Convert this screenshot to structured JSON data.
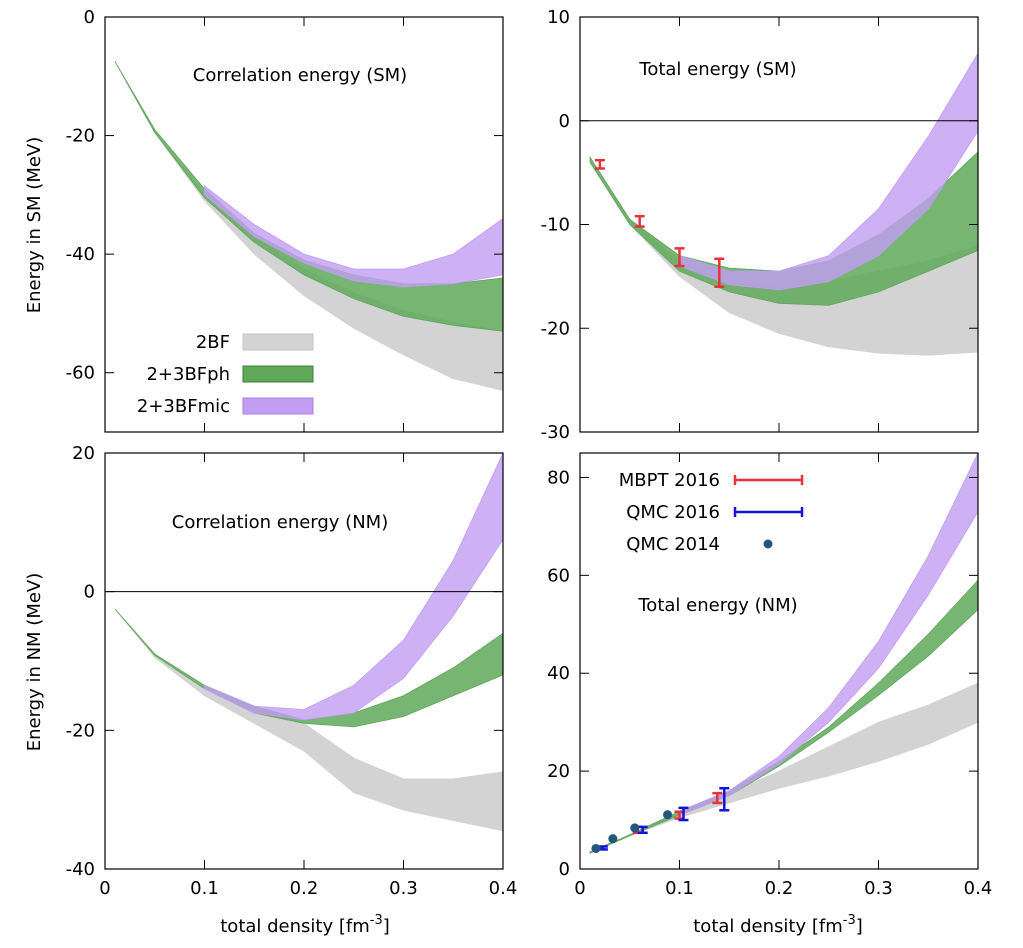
{
  "ylabel_sm": "Energy in SM (MeV)",
  "ylabel_nm": "Energy in NM (MeV)",
  "xlabel_base": "total density [fm",
  "xlabel_exp": "-3",
  "xlabel_end": "]",
  "colors": {
    "2BF": "#d3d3d3",
    "2+3BFph": "#5fa85a",
    "2+3BFmic": "#c29df2",
    "mbpt": "#e8323a",
    "qmc2016": "#1414d8",
    "qmc2014": "#23577e"
  },
  "chart_data": [
    {
      "id": "sm-corr",
      "type": "area",
      "title": "Correlation energy (SM)",
      "xlim": [
        0,
        0.4
      ],
      "ylim": [
        -70,
        0
      ],
      "xticks": [
        0,
        0.1,
        0.2,
        0.3,
        0.4
      ],
      "xtick_labels": [
        "0",
        "0.1",
        "0.2",
        "0.3",
        "0.4"
      ],
      "yticks": [
        -60,
        -40,
        -20,
        0
      ],
      "ytick_labels": [
        "-60",
        "-40",
        "-20",
        "0"
      ],
      "zero_line": false,
      "legend": [
        {
          "name": "2BF",
          "color": "#d3d3d3"
        },
        {
          "name": "2+3BFph",
          "color": "#5fa85a"
        },
        {
          "name": "2+3BFmic",
          "color": "#c29df2"
        }
      ],
      "bands": [
        {
          "name": "2BF",
          "x": [
            0.01,
            0.05,
            0.1,
            0.15,
            0.2,
            0.25,
            0.3,
            0.35,
            0.4
          ],
          "upper": [
            -7.5,
            -19.5,
            -30,
            -37,
            -42.5,
            -46.5,
            -49.5,
            -51.5,
            -53
          ],
          "lower": [
            -7.5,
            -19.5,
            -31,
            -40,
            -47,
            -52.5,
            -57,
            -61,
            -63
          ]
        },
        {
          "name": "2+3BFph",
          "x": [
            0.01,
            0.05,
            0.1,
            0.15,
            0.2,
            0.25,
            0.3,
            0.35,
            0.4
          ],
          "upper": [
            -7.5,
            -19,
            -29,
            -36.5,
            -41,
            -43.5,
            -45,
            -45,
            -44
          ]
        },
        {
          "name": "2+3BFph_lo",
          "x": [
            0.01,
            0.05,
            0.1,
            0.15,
            0.2,
            0.25,
            0.3,
            0.35,
            0.4
          ],
          "lower": [
            -7.5,
            -19.5,
            -30.5,
            -38,
            -43.5,
            -47.5,
            -50.5,
            -52,
            -53
          ]
        },
        {
          "name": "2+3BFmic",
          "x": [
            0.1,
            0.15,
            0.2,
            0.25,
            0.3,
            0.35,
            0.4
          ],
          "upper": [
            -28.5,
            -35,
            -40,
            -42.5,
            -42.5,
            -40,
            -34
          ],
          "lower": [
            -30,
            -37,
            -41.5,
            -44.5,
            -45.5,
            -45,
            -43.5
          ]
        }
      ]
    },
    {
      "id": "sm-total",
      "type": "area",
      "title": "Total energy (SM)",
      "xlim": [
        0,
        0.4
      ],
      "ylim": [
        -30,
        10
      ],
      "xticks": [
        0,
        0.1,
        0.2,
        0.3,
        0.4
      ],
      "xtick_labels": [
        "0",
        "0.1",
        "0.2",
        "0.3",
        "0.4"
      ],
      "yticks": [
        -30,
        -20,
        -10,
        0,
        10
      ],
      "ytick_labels": [
        "-30",
        "-20",
        "-10",
        "0",
        "10"
      ],
      "zero_line": true,
      "bands": [
        {
          "name": "2BF",
          "x": [
            0.01,
            0.05,
            0.1,
            0.15,
            0.2,
            0.25,
            0.3,
            0.35,
            0.4
          ],
          "upper": [
            -4,
            -9.5,
            -13.5,
            -15.5,
            -16,
            -15.5,
            -14.5,
            -13.5,
            -12
          ],
          "lower": [
            -4,
            -10,
            -15,
            -18.5,
            -20.5,
            -21.8,
            -22.4,
            -22.6,
            -22.3
          ]
        },
        {
          "name": "2+3BFph",
          "x": [
            0.01,
            0.05,
            0.1,
            0.15,
            0.2,
            0.25,
            0.3,
            0.35,
            0.4
          ],
          "upper": [
            -3.5,
            -9.5,
            -13,
            -14.2,
            -14.5,
            -13.5,
            -11,
            -7.5,
            -3
          ],
          "lower": [
            -4,
            -10,
            -14.5,
            -16.5,
            -17.6,
            -17.8,
            -16.5,
            -14.5,
            -12.5
          ]
        },
        {
          "name": "2+3BFmic",
          "x": [
            0.1,
            0.15,
            0.2,
            0.25,
            0.3,
            0.35,
            0.4
          ],
          "upper": [
            -13,
            -14.5,
            -14.5,
            -13,
            -8.5,
            -1.5,
            6.5
          ],
          "lower": [
            -14,
            -15.8,
            -16.3,
            -15.5,
            -13,
            -8.5,
            -1
          ]
        }
      ],
      "errorbars_mbpt": [
        {
          "x": 0.02,
          "y": -4.2,
          "lo": -4.6,
          "hi": -3.8
        },
        {
          "x": 0.06,
          "y": -9.6,
          "lo": -10.2,
          "hi": -9.2
        },
        {
          "x": 0.1,
          "y": -13.2,
          "lo": -14.0,
          "hi": -12.3
        },
        {
          "x": 0.14,
          "y": -14.6,
          "lo": -16.0,
          "hi": -13.3
        }
      ]
    },
    {
      "id": "nm-corr",
      "type": "area",
      "title": "Correlation energy (NM)",
      "xlim": [
        0,
        0.4
      ],
      "ylim": [
        -40,
        20
      ],
      "xticks": [
        0,
        0.1,
        0.2,
        0.3,
        0.4
      ],
      "xtick_labels": [
        "0",
        "0.1",
        "0.2",
        "0.3",
        "0.4"
      ],
      "yticks": [
        -40,
        -20,
        0,
        20
      ],
      "ytick_labels": [
        "-40",
        "-20",
        "0",
        "20"
      ],
      "zero_line": true,
      "bands": [
        {
          "name": "2BF",
          "x": [
            0.01,
            0.05,
            0.1,
            0.15,
            0.2,
            0.25,
            0.3,
            0.35,
            0.4
          ],
          "upper": [
            -2.5,
            -9,
            -14,
            -16.5,
            -19,
            -24,
            -27,
            -27,
            -26
          ],
          "lower": [
            -2.5,
            -9.5,
            -15,
            -19,
            -23,
            -29,
            -31.5,
            -33,
            -34.5
          ]
        },
        {
          "name": "2+3BFph",
          "x": [
            0.01,
            0.05,
            0.1,
            0.15,
            0.2,
            0.25,
            0.3,
            0.35,
            0.4
          ],
          "upper": [
            -2.5,
            -9,
            -13.5,
            -16.5,
            -18.5,
            -17.5,
            -15,
            -11,
            -6
          ]
        },
        {
          "name": "2+3BFph_lo",
          "x": [
            0.01,
            0.05,
            0.1,
            0.15,
            0.2,
            0.25,
            0.3,
            0.35,
            0.4
          ],
          "lower": [
            -2.5,
            -9.2,
            -14,
            -17.5,
            -19,
            -19.5,
            -18,
            -15,
            -12
          ]
        },
        {
          "name": "2+3BFmic",
          "x": [
            0.1,
            0.15,
            0.2,
            0.25,
            0.3,
            0.35,
            0.4
          ],
          "upper": [
            -13.5,
            -16.5,
            -17,
            -13.5,
            -7,
            4.5,
            20
          ],
          "lower": [
            -14,
            -17.5,
            -18.5,
            -17.5,
            -12.5,
            -3.5,
            7.5
          ]
        }
      ]
    },
    {
      "id": "nm-total",
      "type": "area",
      "title": "Total energy (NM)",
      "xlim": [
        0,
        0.4
      ],
      "ylim": [
        0,
        85
      ],
      "xticks": [
        0,
        0.1,
        0.2,
        0.3,
        0.4
      ],
      "xtick_labels": [
        "0",
        "0.1",
        "0.2",
        "0.3",
        "0.4"
      ],
      "yticks": [
        0,
        20,
        40,
        60,
        80
      ],
      "ytick_labels": [
        "0",
        "20",
        "40",
        "60",
        "80"
      ],
      "zero_line": false,
      "legend": [
        {
          "name": "MBPT 2016",
          "kind": "errorbar",
          "color": "#e8323a"
        },
        {
          "name": "QMC 2016",
          "kind": "errorbar",
          "color": "#1414d8"
        },
        {
          "name": "QMC 2014",
          "kind": "point",
          "color": "#23577e"
        }
      ],
      "bands": [
        {
          "name": "2BF",
          "x": [
            0.01,
            0.05,
            0.1,
            0.15,
            0.2,
            0.25,
            0.3,
            0.35,
            0.4
          ],
          "upper": [
            3.5,
            7,
            11.5,
            15.5,
            20,
            25,
            30,
            33.5,
            38
          ],
          "lower": [
            3.2,
            6.8,
            10.5,
            13.5,
            16.5,
            19,
            22,
            25.5,
            30
          ]
        },
        {
          "name": "2+3BFph",
          "x": [
            0.01,
            0.05,
            0.1,
            0.15,
            0.2,
            0.25,
            0.3,
            0.35,
            0.4
          ],
          "upper": [
            3.5,
            7,
            11.8,
            16,
            22,
            29,
            38,
            48,
            59
          ]
        },
        {
          "name": "2+3BFph_lo",
          "x": [
            0.01,
            0.05,
            0.1,
            0.15,
            0.2,
            0.25,
            0.3,
            0.35,
            0.4
          ],
          "lower": [
            3.2,
            6.8,
            11,
            15,
            21,
            28,
            35.5,
            43.5,
            53
          ]
        },
        {
          "name": "2+3BFmic",
          "x": [
            0.1,
            0.15,
            0.2,
            0.25,
            0.3,
            0.35,
            0.4
          ],
          "upper": [
            11.8,
            16,
            23,
            33,
            46.5,
            64,
            85
          ]
        },
        {
          "name": "2+3BFmic_lo",
          "x": [
            0.1,
            0.15,
            0.2,
            0.25,
            0.3,
            0.35,
            0.4
          ],
          "lower": [
            11,
            15,
            21.5,
            30,
            41,
            56,
            73
          ]
        }
      ],
      "errorbars_mbpt": [
        {
          "x": 0.058,
          "y": 8,
          "lo": 7.4,
          "hi": 8.6
        },
        {
          "x": 0.1,
          "y": 11,
          "lo": 10.3,
          "hi": 11.7
        },
        {
          "x": 0.138,
          "y": 14.5,
          "lo": 13.5,
          "hi": 15.5
        }
      ],
      "errorbars_qmc2016": [
        {
          "x": 0.023,
          "y": 4.3,
          "lo": 4.0,
          "hi": 4.6
        },
        {
          "x": 0.063,
          "y": 8,
          "lo": 7.4,
          "hi": 8.6
        },
        {
          "x": 0.104,
          "y": 11,
          "lo": 10,
          "hi": 12.5
        },
        {
          "x": 0.145,
          "y": 14,
          "lo": 12,
          "hi": 16.5
        }
      ],
      "points_qmc2014": [
        {
          "x": 0.016,
          "y": 4.2
        },
        {
          "x": 0.033,
          "y": 6.2
        },
        {
          "x": 0.055,
          "y": 8.4
        },
        {
          "x": 0.088,
          "y": 11.1
        }
      ]
    }
  ]
}
